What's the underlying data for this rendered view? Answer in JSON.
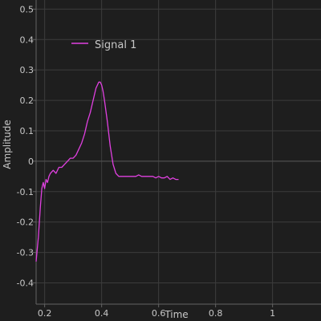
{
  "chart_data": {
    "type": "line",
    "xlabel": "Time",
    "ylabel": "Amplitude",
    "xlim": [
      0.17,
      1.17
    ],
    "ylim": [
      -0.47,
      0.53
    ],
    "x_ticks": [
      0.2,
      0.4,
      0.6,
      0.8,
      1
    ],
    "x_tick_labels": [
      "0.2",
      "0.4",
      "0.6",
      "0.8",
      "1"
    ],
    "y_ticks": [
      0.5,
      0.4,
      0.3,
      0.2,
      0.1,
      0,
      -0.1,
      -0.2,
      -0.3,
      -0.4
    ],
    "y_tick_labels": [
      "0.5",
      "0.4",
      "0.3",
      "0.2",
      "0.1",
      "0",
      "-0.1",
      "-0.2",
      "-0.3",
      "-0.4"
    ],
    "grid": true,
    "legend_position": "top-left",
    "colors": {
      "background": "#1e1e1e",
      "grid": "#3c3c3c",
      "axis": "#646464",
      "text": "#c8c8c8",
      "series": "#e040e0"
    },
    "series": [
      {
        "name": "Signal 1",
        "x": [
          0.17,
          0.178,
          0.185,
          0.19,
          0.195,
          0.2,
          0.205,
          0.21,
          0.215,
          0.22,
          0.23,
          0.24,
          0.25,
          0.26,
          0.27,
          0.28,
          0.29,
          0.3,
          0.31,
          0.32,
          0.33,
          0.34,
          0.35,
          0.36,
          0.37,
          0.38,
          0.39,
          0.395,
          0.4,
          0.405,
          0.41,
          0.42,
          0.43,
          0.44,
          0.45,
          0.46,
          0.47,
          0.48,
          0.49,
          0.5,
          0.51,
          0.52,
          0.53,
          0.54,
          0.55,
          0.56,
          0.57,
          0.58,
          0.59,
          0.6,
          0.61,
          0.62,
          0.63,
          0.64,
          0.65,
          0.66,
          0.67
        ],
        "values": [
          -0.33,
          -0.25,
          -0.15,
          -0.09,
          -0.07,
          -0.09,
          -0.06,
          -0.07,
          -0.05,
          -0.04,
          -0.03,
          -0.04,
          -0.02,
          -0.02,
          -0.01,
          0.0,
          0.01,
          0.01,
          0.02,
          0.04,
          0.06,
          0.09,
          0.13,
          0.16,
          0.2,
          0.24,
          0.26,
          0.26,
          0.25,
          0.23,
          0.2,
          0.13,
          0.05,
          -0.01,
          -0.04,
          -0.05,
          -0.05,
          -0.05,
          -0.05,
          -0.05,
          -0.05,
          -0.05,
          -0.045,
          -0.05,
          -0.05,
          -0.05,
          -0.05,
          -0.05,
          -0.055,
          -0.05,
          -0.055,
          -0.055,
          -0.05,
          -0.06,
          -0.055,
          -0.06,
          -0.06
        ]
      }
    ]
  }
}
